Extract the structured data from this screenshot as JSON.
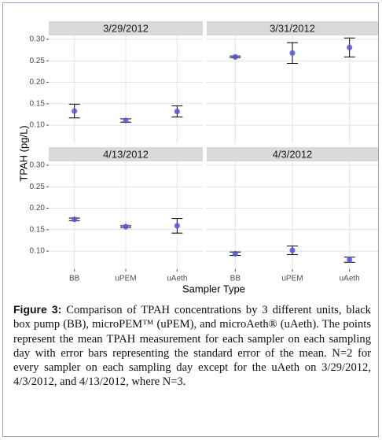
{
  "axis_labels": {
    "x": "Sampler Type",
    "y": "TPAH (pg/L)"
  },
  "figure_label": "Figure 3:",
  "caption": "Comparison of TPAH concentrations by 3 different units, black box pump (BB), microPEM™ (uPEM), and microAeth® (uAeth). The points represent the mean TPAH measurement for each sampler on each sampling day with error bars representing the standard error of the mean. N=2 for every sampler on each sampling day except for the uAeth on 3/29/2012, 4/3/2012, and 4/13/2012, where N=3.",
  "chart_data": [
    {
      "type": "scatter",
      "title": "3/29/2012",
      "values": [
        0.133,
        0.111,
        0.132
      ],
      "errors": [
        0.016,
        0.004,
        0.013
      ],
      "color": "#5555e0",
      "ylim": [
        0.058,
        0.309
      ],
      "yticks": [
        {
          "value": 0.1,
          "label": "0.10"
        },
        {
          "value": 0.15,
          "label": "0.15"
        },
        {
          "value": 0.2,
          "label": "0.20"
        },
        {
          "value": 0.25,
          "label": "0.25"
        },
        {
          "value": 0.3,
          "label": "0.30"
        }
      ],
      "grid": true
    },
    {
      "type": "scatter",
      "title": "3/31/2012",
      "values": [
        0.259,
        0.268,
        0.281
      ],
      "errors": [
        0.002,
        0.024,
        0.022
      ],
      "color": "#5555e0",
      "ylim": [
        0.058,
        0.309
      ],
      "yticks": [
        {
          "value": 0.1,
          "label": "0.10"
        },
        {
          "value": 0.15,
          "label": "0.15"
        },
        {
          "value": 0.2,
          "label": "0.20"
        },
        {
          "value": 0.25,
          "label": "0.25"
        },
        {
          "value": 0.3,
          "label": "0.30"
        }
      ],
      "grid": true
    },
    {
      "type": "scatter",
      "title": "4/13/2012",
      "categories": [
        "BB",
        "uPEM",
        "uAeth"
      ],
      "values": [
        0.174,
        0.157,
        0.159
      ],
      "errors": [
        0.003,
        0.002,
        0.017
      ],
      "color": "#5555e0",
      "ylim": [
        0.058,
        0.309
      ],
      "yticks": [
        {
          "value": 0.1,
          "label": "0.10"
        },
        {
          "value": 0.15,
          "label": "0.15"
        },
        {
          "value": 0.2,
          "label": "0.20"
        },
        {
          "value": 0.25,
          "label": "0.25"
        },
        {
          "value": 0.3,
          "label": "0.30"
        }
      ],
      "grid": true
    },
    {
      "type": "scatter",
      "title": "4/3/2012",
      "categories": [
        "BB",
        "uPEM",
        "uAeth"
      ],
      "values": [
        0.094,
        0.102,
        0.08
      ],
      "errors": [
        0.004,
        0.01,
        0.006
      ],
      "color": "#5555e0",
      "ylim": [
        0.058,
        0.309
      ],
      "yticks": [
        {
          "value": 0.1,
          "label": "0.10"
        },
        {
          "value": 0.15,
          "label": "0.15"
        },
        {
          "value": 0.2,
          "label": "0.20"
        },
        {
          "value": 0.25,
          "label": "0.25"
        },
        {
          "value": 0.3,
          "label": "0.30"
        }
      ],
      "grid": true
    }
  ]
}
